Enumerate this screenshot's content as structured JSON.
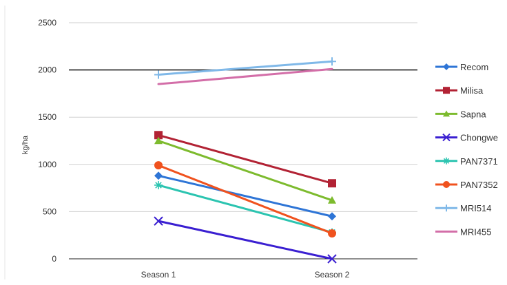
{
  "chart_data": {
    "type": "line",
    "categories": [
      "Season 1",
      "Season 2"
    ],
    "ylabel": "kg/ha",
    "ylim": [
      0,
      2500
    ],
    "yticks": [
      "0",
      "500",
      "1000",
      "1500",
      "2000",
      "2500"
    ],
    "grid": true,
    "reference_line": 2000,
    "legend_position": "right",
    "series": [
      {
        "name": "Recom",
        "values": [
          880,
          450
        ],
        "color": "#2E75D6",
        "marker": "diamond"
      },
      {
        "name": "Milisa",
        "values": [
          1310,
          800
        ],
        "color": "#B22234",
        "marker": "square"
      },
      {
        "name": "Sapna",
        "values": [
          1250,
          620
        ],
        "color": "#7DBB2E",
        "marker": "triangle"
      },
      {
        "name": "Chongwe",
        "values": [
          400,
          0
        ],
        "color": "#3A1FD1",
        "marker": "x"
      },
      {
        "name": "PAN7371",
        "values": [
          780,
          280
        ],
        "color": "#2BC4B0",
        "marker": "star"
      },
      {
        "name": "PAN7352",
        "values": [
          990,
          270
        ],
        "color": "#F0521E",
        "marker": "circle"
      },
      {
        "name": "MRI514",
        "values": [
          1950,
          2090
        ],
        "color": "#7FB8E8",
        "marker": "plus"
      },
      {
        "name": "MRI455",
        "values": [
          1850,
          2010
        ],
        "color": "#D36EA8",
        "marker": "none"
      }
    ]
  }
}
